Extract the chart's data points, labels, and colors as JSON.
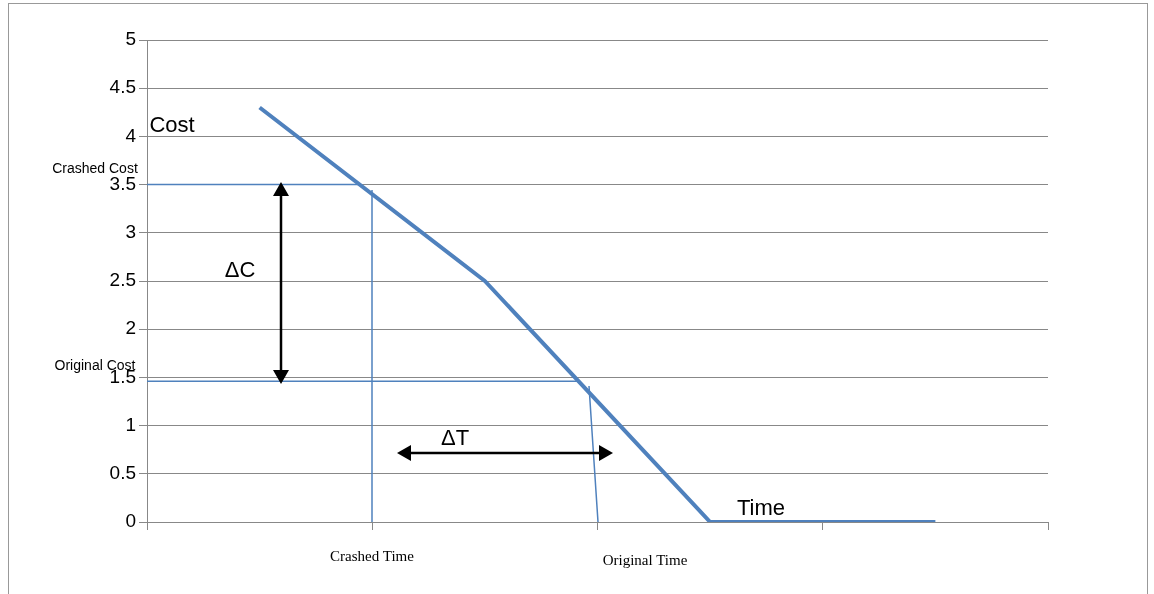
{
  "chart_data": {
    "type": "line",
    "categories": [
      null,
      null,
      null,
      null
    ],
    "ylim": [
      0,
      5
    ],
    "yticks": [
      0,
      0.5,
      1,
      1.5,
      2,
      2.5,
      3,
      3.5,
      4,
      4.5,
      5
    ],
    "grid": "y",
    "marker": "none",
    "tick_labels": "y",
    "series": [
      {
        "color": "#4f81bd",
        "values": [
          4.3,
          2.5,
          0,
          0
        ]
      }
    ],
    "ref_lines": [
      {
        "axis": "y",
        "value": 3.5,
        "label": "Crashed Cost",
        "color": "#4f81bd"
      },
      {
        "axis": "y",
        "value": 1.46,
        "label": "Original Cost",
        "color": "#4f81bd"
      }
    ],
    "annotations": [
      "Cost",
      "Time",
      "ΔC",
      "ΔT",
      "Crashed Time",
      "Original Time"
    ]
  }
}
